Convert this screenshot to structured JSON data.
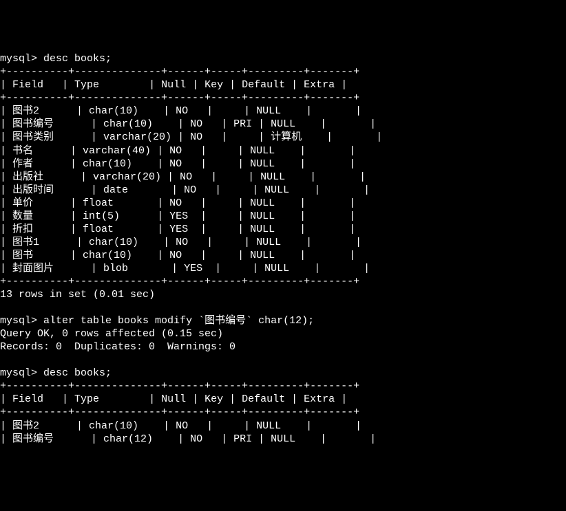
{
  "terminal": {
    "prompt": "mysql>",
    "cmd_desc": "desc books;",
    "headers": {
      "field": "Field",
      "type": "Type",
      "null": "Null",
      "key": "Key",
      "default": "Default",
      "extra": "Extra"
    },
    "rows1": [
      {
        "field": "图书2",
        "type": "char(10)",
        "null": "NO",
        "key": "",
        "default": "NULL",
        "extra": ""
      },
      {
        "field": "图书编号",
        "type": "char(10)",
        "null": "NO",
        "key": "PRI",
        "default": "NULL",
        "extra": ""
      },
      {
        "field": "图书类别",
        "type": "varchar(20)",
        "null": "NO",
        "key": "",
        "default": "计算机",
        "extra": ""
      },
      {
        "field": "书名",
        "type": "varchar(40)",
        "null": "NO",
        "key": "",
        "default": "NULL",
        "extra": ""
      },
      {
        "field": "作者",
        "type": "char(10)",
        "null": "NO",
        "key": "",
        "default": "NULL",
        "extra": ""
      },
      {
        "field": "出版社",
        "type": "varchar(20)",
        "null": "NO",
        "key": "",
        "default": "NULL",
        "extra": ""
      },
      {
        "field": "出版时间",
        "type": "date",
        "null": "NO",
        "key": "",
        "default": "NULL",
        "extra": ""
      },
      {
        "field": "单价",
        "type": "float",
        "null": "NO",
        "key": "",
        "default": "NULL",
        "extra": ""
      },
      {
        "field": "数量",
        "type": "int(5)",
        "null": "YES",
        "key": "",
        "default": "NULL",
        "extra": ""
      },
      {
        "field": "折扣",
        "type": "float",
        "null": "YES",
        "key": "",
        "default": "NULL",
        "extra": ""
      },
      {
        "field": "图书1",
        "type": "char(10)",
        "null": "NO",
        "key": "",
        "default": "NULL",
        "extra": ""
      },
      {
        "field": "图书",
        "type": "char(10)",
        "null": "NO",
        "key": "",
        "default": "NULL",
        "extra": ""
      },
      {
        "field": "封面图片",
        "type": "blob",
        "null": "YES",
        "key": "",
        "default": "NULL",
        "extra": ""
      }
    ],
    "rowcount1": "13 rows in set (0.01 sec)",
    "cmd_alter": "alter table books modify `图书编号` char(12);",
    "alter_result1": "Query OK, 0 rows affected (0.15 sec)",
    "alter_result2": "Records: 0  Duplicates: 0  Warnings: 0",
    "rows2": [
      {
        "field": "图书2",
        "type": "char(10)",
        "null": "NO",
        "key": "",
        "default": "NULL",
        "extra": ""
      },
      {
        "field": "图书编号",
        "type": "char(12)",
        "null": "NO",
        "key": "PRI",
        "default": "NULL",
        "extra": ""
      }
    ],
    "colors": {
      "bg": "#000000",
      "fg": "#ffffff"
    }
  }
}
